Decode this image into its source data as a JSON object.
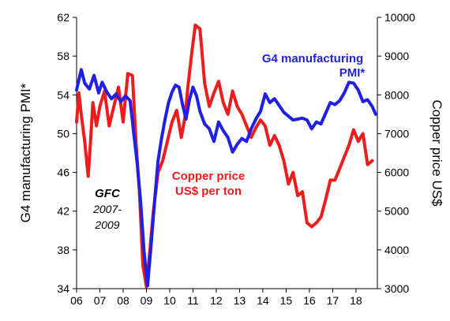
{
  "chart_data": {
    "type": "line",
    "title": "",
    "x_tick_labels": [
      "06",
      "07",
      "08",
      "09",
      "10",
      "11",
      "12",
      "13",
      "14",
      "15",
      "16",
      "17",
      "18"
    ],
    "x_start": 2006.0,
    "x_end": 2018.92,
    "left_axis": {
      "label": "G4 manufacturing PMI*",
      "min": 34,
      "max": 62,
      "ticks": [
        34,
        38,
        42,
        46,
        50,
        54,
        58,
        62
      ]
    },
    "right_axis": {
      "label": "Copper price US$",
      "min": 3000,
      "max": 10000,
      "ticks": [
        3000,
        4000,
        5000,
        6000,
        7000,
        8000,
        9000,
        10000
      ]
    },
    "grid": false,
    "series": [
      {
        "name": "G4 manufacturing PMI*",
        "axis": "left",
        "color": "#1f1fe6",
        "x": [
          2006.0,
          2006.2,
          2006.35,
          2006.55,
          2006.75,
          2006.95,
          2007.1,
          2007.3,
          2007.5,
          2007.7,
          2007.9,
          2008.1,
          2008.3,
          2008.45,
          2008.6,
          2008.75,
          2008.9,
          2009.05,
          2009.2,
          2009.35,
          2009.5,
          2009.65,
          2009.8,
          2009.95,
          2010.1,
          2010.25,
          2010.4,
          2010.55,
          2010.7,
          2010.85,
          2011.0,
          2011.15,
          2011.3,
          2011.5,
          2011.7,
          2011.9,
          2012.1,
          2012.3,
          2012.5,
          2012.7,
          2012.9,
          2013.1,
          2013.3,
          2013.5,
          2013.7,
          2013.9,
          2014.1,
          2014.3,
          2014.5,
          2014.7,
          2014.9,
          2015.1,
          2015.3,
          2015.5,
          2015.7,
          2015.9,
          2016.1,
          2016.3,
          2016.5,
          2016.7,
          2016.9,
          2017.1,
          2017.3,
          2017.5,
          2017.7,
          2017.9,
          2018.1,
          2018.3,
          2018.5,
          2018.7,
          2018.85
        ],
        "y": [
          54.5,
          56.6,
          55.2,
          54.6,
          56.0,
          54.2,
          55.3,
          54.3,
          53.6,
          54.1,
          53.3,
          53.9,
          53.4,
          50.2,
          47.0,
          43.0,
          37.8,
          34.3,
          38.5,
          43.0,
          47.2,
          49.5,
          51.5,
          53.2,
          54.3,
          55.0,
          54.8,
          53.0,
          51.5,
          53.5,
          54.8,
          53.9,
          52.3,
          51.0,
          50.5,
          49.2,
          51.2,
          50.3,
          49.6,
          48.1,
          48.9,
          49.5,
          49.2,
          50.5,
          51.5,
          52.3,
          54.1,
          53.2,
          53.6,
          52.9,
          52.2,
          51.8,
          51.4,
          51.5,
          51.6,
          51.4,
          50.5,
          51.2,
          51.0,
          52.1,
          53.2,
          53.0,
          53.4,
          54.2,
          55.3,
          55.2,
          54.5,
          53.3,
          53.5,
          52.8,
          52.0
        ]
      },
      {
        "name": "Copper price US$ per ton",
        "axis": "right",
        "color": "#ee1c1c",
        "x": [
          2006.0,
          2006.1,
          2006.2,
          2006.35,
          2006.5,
          2006.6,
          2006.7,
          2006.85,
          2007.0,
          2007.2,
          2007.4,
          2007.6,
          2007.8,
          2008.0,
          2008.2,
          2008.4,
          2008.55,
          2008.7,
          2008.85,
          2009.0,
          2009.15,
          2009.3,
          2009.5,
          2009.7,
          2009.9,
          2010.1,
          2010.3,
          2010.5,
          2010.65,
          2010.8,
          2010.95,
          2011.1,
          2011.3,
          2011.5,
          2011.7,
          2011.9,
          2012.1,
          2012.3,
          2012.5,
          2012.7,
          2012.9,
          2013.1,
          2013.3,
          2013.5,
          2013.7,
          2013.9,
          2014.1,
          2014.3,
          2014.5,
          2014.7,
          2014.9,
          2015.1,
          2015.3,
          2015.5,
          2015.7,
          2015.9,
          2016.1,
          2016.3,
          2016.5,
          2016.7,
          2016.9,
          2017.1,
          2017.3,
          2017.5,
          2017.7,
          2017.9,
          2018.1,
          2018.3,
          2018.5,
          2018.7
        ],
        "y": [
          7300,
          8050,
          7500,
          6800,
          5900,
          6800,
          7800,
          7200,
          7700,
          8100,
          7200,
          7700,
          8200,
          7300,
          8550,
          8500,
          6800,
          5500,
          3600,
          3050,
          4000,
          5000,
          6000,
          6300,
          6800,
          7300,
          7600,
          6900,
          7400,
          8300,
          9100,
          9800,
          9700,
          8300,
          7700,
          8050,
          8350,
          7800,
          7500,
          8100,
          7700,
          7500,
          7200,
          6900,
          7150,
          7350,
          7200,
          6700,
          6950,
          6700,
          6300,
          5700,
          6000,
          5400,
          5500,
          4700,
          4600,
          4700,
          4850,
          5300,
          5800,
          5800,
          6100,
          6400,
          6700,
          7100,
          6800,
          7000,
          6200,
          6300
        ]
      }
    ],
    "annotations": [
      {
        "text": "G4 manufacturing",
        "color": "#1f1fe6",
        "bold": true,
        "italic": false
      },
      {
        "text": "PMI*",
        "color": "#1f1fe6",
        "bold": true,
        "italic": false
      },
      {
        "text": "Copper price",
        "color": "#ee1c1c",
        "bold": true,
        "italic": false
      },
      {
        "text": "US$ per ton",
        "color": "#ee1c1c",
        "bold": true,
        "italic": false
      },
      {
        "text": "GFC",
        "color": "#000000",
        "bold": true,
        "italic": true
      },
      {
        "text": "2007-",
        "color": "#000000",
        "bold": false,
        "italic": true
      },
      {
        "text": "2009",
        "color": "#000000",
        "bold": false,
        "italic": true
      }
    ]
  }
}
